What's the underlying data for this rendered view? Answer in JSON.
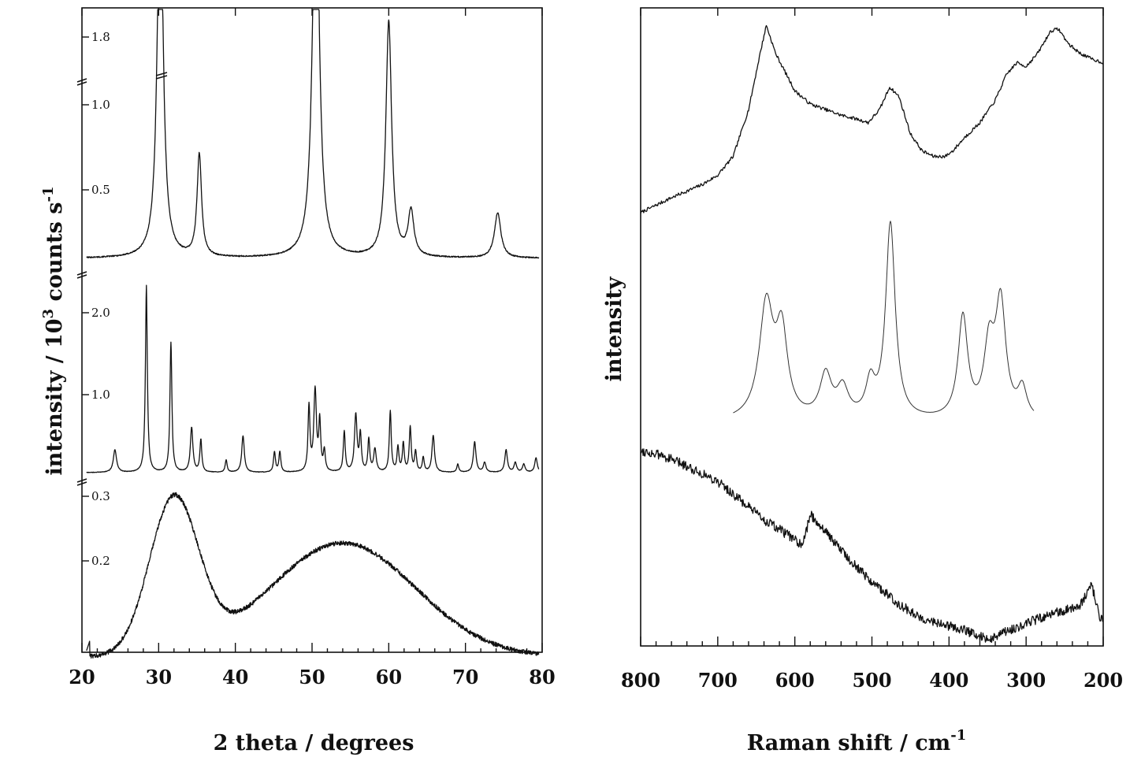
{
  "chart_data": [
    {
      "type": "line",
      "panel": "left",
      "title": "",
      "xlabel": "2 theta / degrees",
      "ylabel": "intensity / 10^3 counts s^-1",
      "ylabel_parts": {
        "main": "intensity / 10",
        "exp1": "3",
        "mid": " counts s",
        "exp2": "-1"
      },
      "xlim": [
        20,
        80
      ],
      "xticks": [
        20,
        30,
        40,
        50,
        60,
        70,
        80
      ],
      "stacked": true,
      "axis_breaks": true,
      "grid": false,
      "series": [
        {
          "id": "top",
          "y_tick_labels": [
            "0.5",
            "1.0",
            "1.8"
          ],
          "y_ticks": [
            0.5,
            1.0,
            1.8
          ],
          "baseline": 0.1,
          "peaks": [
            {
              "x": 30.2,
              "y": 1.9,
              "w": 0.45
            },
            {
              "x": 35.3,
              "y": 0.5,
              "w": 0.35
            },
            {
              "x": 50.5,
              "y": 2.05,
              "w": 0.5
            },
            {
              "x": 60.0,
              "y": 1.15,
              "w": 0.45
            },
            {
              "x": 62.9,
              "y": 0.22,
              "w": 0.45
            },
            {
              "x": 74.2,
              "y": 0.22,
              "w": 0.5
            }
          ]
        },
        {
          "id": "middle",
          "y_tick_labels": [
            "1.0",
            "2.0"
          ],
          "y_ticks": [
            1.0,
            2.0
          ],
          "baseline": 0.0,
          "peaks": [
            {
              "x": 24.3,
              "y": 0.28,
              "w": 0.25
            },
            {
              "x": 28.4,
              "y": 2.3,
              "w": 0.15
            },
            {
              "x": 31.6,
              "y": 1.6,
              "w": 0.15
            },
            {
              "x": 34.3,
              "y": 0.55,
              "w": 0.2
            },
            {
              "x": 35.5,
              "y": 0.4,
              "w": 0.15
            },
            {
              "x": 38.8,
              "y": 0.15,
              "w": 0.15
            },
            {
              "x": 41.0,
              "y": 0.45,
              "w": 0.2
            },
            {
              "x": 45.1,
              "y": 0.25,
              "w": 0.15
            },
            {
              "x": 45.8,
              "y": 0.25,
              "w": 0.15
            },
            {
              "x": 49.6,
              "y": 0.8,
              "w": 0.15
            },
            {
              "x": 50.4,
              "y": 1.0,
              "w": 0.2
            },
            {
              "x": 51.0,
              "y": 0.6,
              "w": 0.15
            },
            {
              "x": 51.6,
              "y": 0.25,
              "w": 0.15
            },
            {
              "x": 54.2,
              "y": 0.5,
              "w": 0.15
            },
            {
              "x": 55.7,
              "y": 0.7,
              "w": 0.2
            },
            {
              "x": 56.3,
              "y": 0.45,
              "w": 0.15
            },
            {
              "x": 57.4,
              "y": 0.4,
              "w": 0.15
            },
            {
              "x": 58.2,
              "y": 0.28,
              "w": 0.2
            },
            {
              "x": 60.2,
              "y": 0.75,
              "w": 0.15
            },
            {
              "x": 61.2,
              "y": 0.3,
              "w": 0.15
            },
            {
              "x": 61.9,
              "y": 0.35,
              "w": 0.15
            },
            {
              "x": 62.8,
              "y": 0.55,
              "w": 0.15
            },
            {
              "x": 63.5,
              "y": 0.25,
              "w": 0.15
            },
            {
              "x": 64.5,
              "y": 0.18,
              "w": 0.15
            },
            {
              "x": 65.8,
              "y": 0.45,
              "w": 0.2
            },
            {
              "x": 69.0,
              "y": 0.1,
              "w": 0.15
            },
            {
              "x": 71.2,
              "y": 0.38,
              "w": 0.2
            },
            {
              "x": 72.5,
              "y": 0.12,
              "w": 0.2
            },
            {
              "x": 75.3,
              "y": 0.28,
              "w": 0.2
            },
            {
              "x": 76.5,
              "y": 0.12,
              "w": 0.2
            },
            {
              "x": 77.6,
              "y": 0.1,
              "w": 0.2
            },
            {
              "x": 79.2,
              "y": 0.18,
              "w": 0.2
            }
          ]
        },
        {
          "id": "bottom",
          "y_tick_labels": [
            "0.2",
            "0.3"
          ],
          "y_ticks": [
            0.2,
            0.3
          ],
          "baseline": 0.09,
          "peaks": [
            {
              "x": 32.0,
              "y": 0.21,
              "w": 3.2
            },
            {
              "x": 54.0,
              "y": 0.155,
              "w": 9.5
            }
          ]
        }
      ]
    },
    {
      "type": "line",
      "panel": "right",
      "title": "",
      "xlabel_parts": {
        "main": "Raman shift / cm",
        "exp": "-1"
      },
      "ylabel": "intensity",
      "xlim": [
        800,
        200
      ],
      "xticks": [
        800,
        700,
        600,
        500,
        400,
        300,
        200
      ],
      "stacked": true,
      "grid": false,
      "series": [
        {
          "id": "top",
          "description_trend": "broad spectrum",
          "points": [
            [
              800,
              0.0
            ],
            [
              760,
              0.08
            ],
            [
              720,
              0.15
            ],
            [
              700,
              0.2
            ],
            [
              680,
              0.3
            ],
            [
              660,
              0.55
            ],
            [
              645,
              0.85
            ],
            [
              637,
              1.0
            ],
            [
              625,
              0.85
            ],
            [
              600,
              0.65
            ],
            [
              580,
              0.58
            ],
            [
              560,
              0.55
            ],
            [
              540,
              0.52
            ],
            [
              520,
              0.5
            ],
            [
              505,
              0.48
            ],
            [
              490,
              0.55
            ],
            [
              477,
              0.67
            ],
            [
              465,
              0.62
            ],
            [
              450,
              0.42
            ],
            [
              435,
              0.33
            ],
            [
              420,
              0.3
            ],
            [
              405,
              0.3
            ],
            [
              395,
              0.33
            ],
            [
              380,
              0.4
            ],
            [
              360,
              0.48
            ],
            [
              340,
              0.6
            ],
            [
              325,
              0.74
            ],
            [
              312,
              0.8
            ],
            [
              300,
              0.78
            ],
            [
              285,
              0.85
            ],
            [
              268,
              0.97
            ],
            [
              258,
              0.98
            ],
            [
              245,
              0.9
            ],
            [
              230,
              0.85
            ],
            [
              215,
              0.82
            ],
            [
              200,
              0.8
            ]
          ]
        },
        {
          "id": "middle",
          "peaks": [
            {
              "x": 637,
              "y": 0.58,
              "w": 11
            },
            {
              "x": 617,
              "y": 0.42,
              "w": 9
            },
            {
              "x": 560,
              "y": 0.22,
              "w": 9
            },
            {
              "x": 538,
              "y": 0.15,
              "w": 9
            },
            {
              "x": 502,
              "y": 0.17,
              "w": 7
            },
            {
              "x": 476,
              "y": 1.0,
              "w": 7.5
            },
            {
              "x": 382,
              "y": 0.52,
              "w": 7.5
            },
            {
              "x": 348,
              "y": 0.35,
              "w": 8
            },
            {
              "x": 333,
              "y": 0.58,
              "w": 8
            },
            {
              "x": 305,
              "y": 0.15,
              "w": 7
            }
          ]
        },
        {
          "id": "bottom",
          "points": [
            [
              800,
              0.98
            ],
            [
              770,
              0.95
            ],
            [
              740,
              0.9
            ],
            [
              700,
              0.82
            ],
            [
              670,
              0.72
            ],
            [
              640,
              0.62
            ],
            [
              600,
              0.52
            ],
            [
              590,
              0.48
            ],
            [
              580,
              0.65
            ],
            [
              560,
              0.56
            ],
            [
              530,
              0.42
            ],
            [
              500,
              0.3
            ],
            [
              470,
              0.2
            ],
            [
              440,
              0.12
            ],
            [
              410,
              0.08
            ],
            [
              380,
              0.05
            ],
            [
              350,
              0.0
            ],
            [
              320,
              0.05
            ],
            [
              290,
              0.1
            ],
            [
              260,
              0.14
            ],
            [
              230,
              0.18
            ],
            [
              215,
              0.28
            ],
            [
              205,
              0.12
            ],
            [
              200,
              0.1
            ]
          ]
        }
      ]
    }
  ]
}
